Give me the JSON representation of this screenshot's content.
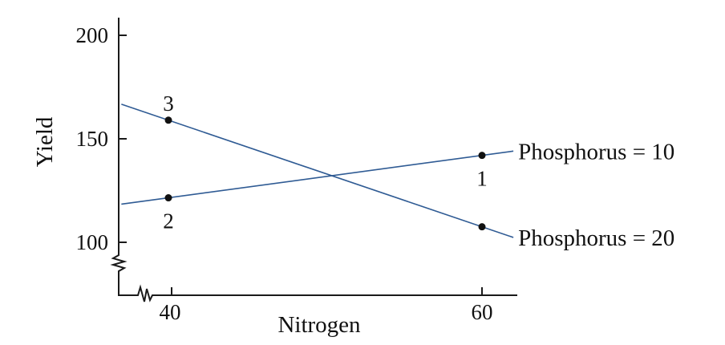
{
  "chart_data": {
    "type": "line",
    "title": "",
    "xlabel": "Nitrogen",
    "ylabel": "Yield",
    "x_ticks": [
      40,
      60
    ],
    "y_ticks": [
      100,
      150,
      200
    ],
    "x_tick_labels": [
      "40",
      "60"
    ],
    "y_tick_labels": [
      "100",
      "150",
      "200"
    ],
    "axis_breaks": [
      "x",
      "y"
    ],
    "grid": false,
    "series": [
      {
        "name": "Phosphorus = 10",
        "color": "#2f5b94",
        "x": [
          40,
          60
        ],
        "y": [
          121.5,
          142
        ]
      },
      {
        "name": "Phosphorus = 20",
        "color": "#2f5b94",
        "x": [
          40,
          60
        ],
        "y": [
          159,
          107.5
        ]
      }
    ],
    "points": [
      {
        "label": "3",
        "x": 40,
        "y": 159,
        "label_pos": "above"
      },
      {
        "label": "2",
        "x": 40,
        "y": 121.5,
        "label_pos": "below"
      },
      {
        "label": "1",
        "x": 60,
        "y": 142,
        "label_pos": "below"
      },
      {
        "label": "",
        "x": 60,
        "y": 107.5,
        "label_pos": "none"
      }
    ]
  }
}
